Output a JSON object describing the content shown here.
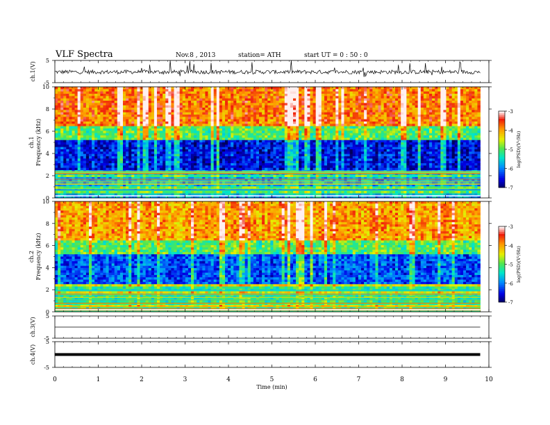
{
  "header": {
    "title": "VLF  Spectra",
    "date": "Nov.8  , 2013",
    "station": "station= ATH",
    "start": "start  UT  =   0  : 50 : 0"
  },
  "chart_data": [
    {
      "type": "line",
      "panel": "ch1-waveform",
      "ylabel": "ch.1(V)",
      "ylim": [
        -5,
        5
      ],
      "yticks": [
        "5",
        "-5"
      ],
      "series": [
        {
          "values_description_level": -0.2,
          "baseline_V": 0.0,
          "noise_V": 0.3,
          "spikes": true
        }
      ]
    },
    {
      "type": "heatmap",
      "panel": "ch1-spectrogram",
      "ylabel": "ch.1\nFrequency (kHz)",
      "ylim": [
        0,
        10
      ],
      "yticks": [
        "0",
        "2",
        "4",
        "6",
        "8",
        "10"
      ],
      "colorbar": {
        "label": "log(PSD)(V²/Hz)",
        "range": [
          -7,
          -3
        ],
        "ticks": [
          "-3",
          "-4",
          "-5",
          "-6",
          "-7"
        ]
      },
      "bands_kHz": [
        {
          "from": 0,
          "to": 2.5,
          "level": -5.8
        },
        {
          "from": 2.5,
          "to": 5.2,
          "level": -6.5
        },
        {
          "from": 5.2,
          "to": 6.5,
          "level": -5.0
        },
        {
          "from": 6.5,
          "to": 10,
          "level": -3.8
        }
      ]
    },
    {
      "type": "heatmap",
      "panel": "ch2-spectrogram",
      "ylabel": "ch.2\nFrequency (kHz)",
      "ylim": [
        0,
        10
      ],
      "yticks": [
        "0",
        "2",
        "4",
        "6",
        "8",
        "10"
      ],
      "colorbar": {
        "label": "log(PSD)(V²/Hz)",
        "range": [
          -7,
          -3
        ],
        "ticks": [
          "-3",
          "-4",
          "-5",
          "-6",
          "-7"
        ]
      },
      "bands_kHz": [
        {
          "from": 0,
          "to": 2.5,
          "level": -5.2
        },
        {
          "from": 2.5,
          "to": 5.2,
          "level": -6.2
        },
        {
          "from": 5.2,
          "to": 6.5,
          "level": -5.0
        },
        {
          "from": 6.5,
          "to": 10,
          "level": -4.0
        }
      ]
    },
    {
      "type": "line",
      "panel": "ch3-waveform",
      "ylabel": "ch.3(V)",
      "ylim": [
        -5,
        5
      ],
      "yticks": [
        "5",
        "-5"
      ],
      "series": [
        {
          "baseline_V": 0.0
        }
      ]
    },
    {
      "type": "line",
      "panel": "ch4-waveform",
      "ylabel": "ch.4(V)",
      "ylim": [
        -5,
        5
      ],
      "yticks": [
        "5",
        "-5"
      ],
      "series": [
        {
          "baseline_V": 0.0
        }
      ]
    }
  ],
  "xaxis": {
    "label": "Time  (min)",
    "range": [
      0,
      10
    ],
    "data_end": 9.8,
    "ticks": [
      "0",
      "1",
      "2",
      "3",
      "4",
      "5",
      "6",
      "7",
      "8",
      "9",
      "10"
    ]
  }
}
